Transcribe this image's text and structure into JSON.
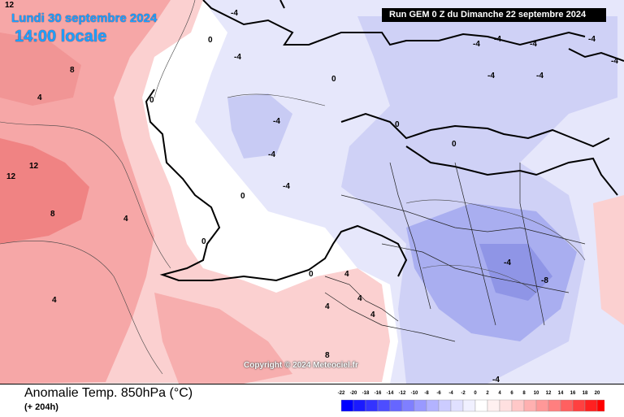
{
  "header": {
    "date_line": "Lundi 30 septembre 2024",
    "time_line": "14:00 locale",
    "run_info": "Run GEM 0 Z du Dimanche 22 septembre 2024"
  },
  "map": {
    "projection_region": "North Atlantic and Europe",
    "contour_labels": [
      {
        "text": "12"
      },
      {
        "text": "-4"
      },
      {
        "text": "0"
      },
      {
        "text": "8"
      },
      {
        "text": "4"
      },
      {
        "text": "12"
      },
      {
        "text": "12"
      },
      {
        "text": "8"
      },
      {
        "text": "4"
      },
      {
        "text": "0"
      },
      {
        "text": "-4"
      },
      {
        "text": "-4"
      },
      {
        "text": "-4"
      },
      {
        "text": "-4"
      },
      {
        "text": "0"
      },
      {
        "text": "0"
      },
      {
        "text": "-4"
      },
      {
        "text": "-4"
      },
      {
        "text": "-4"
      },
      {
        "text": "-4"
      },
      {
        "text": "-4"
      },
      {
        "text": "-4"
      },
      {
        "text": "-4"
      },
      {
        "text": "0"
      },
      {
        "text": "0"
      },
      {
        "text": "4"
      },
      {
        "text": "4"
      },
      {
        "text": "4"
      },
      {
        "text": "4"
      },
      {
        "text": "8"
      },
      {
        "text": "-8"
      },
      {
        "text": "-4"
      },
      {
        "text": "0"
      },
      {
        "text": "0"
      },
      {
        "text": "4"
      },
      {
        "text": "-4"
      }
    ],
    "colors": {
      "warm_strong": "#f07575",
      "warm_mid": "#f5a0a0",
      "warm_light": "#fbd0d0",
      "neutral": "#ffffff",
      "cool_light": "#dfe0fb",
      "cool_mid": "#b9bcf2",
      "cool_strong": "#9298e8",
      "coast": "#000000"
    }
  },
  "copyright": "Copyright © 2024 Meteociel.fr",
  "footer": {
    "title": "Anomalie Temp. 850hPa (°C)",
    "subtitle": "(+ 204h)"
  },
  "legend": {
    "labels": [
      "-22",
      "-20",
      "-18",
      "-16",
      "-14",
      "-12",
      "-10",
      "-8",
      "-6",
      "-4",
      "-2",
      "0",
      "2",
      "4",
      "6",
      "8",
      "10",
      "12",
      "14",
      "16",
      "18",
      "20"
    ],
    "colors": [
      "#0000ff",
      "#1a1aff",
      "#3333ff",
      "#4d4dff",
      "#6666ff",
      "#7f7fff",
      "#9999ff",
      "#b3b3ff",
      "#ccccff",
      "#e0e0ff",
      "#f0f0ff",
      "#ffffff",
      "#fff0f0",
      "#ffe0e0",
      "#ffc8c8",
      "#ffb0b0",
      "#ff9898",
      "#ff7f7f",
      "#ff6060",
      "#ff4040",
      "#ff2020",
      "#ff0000"
    ]
  }
}
